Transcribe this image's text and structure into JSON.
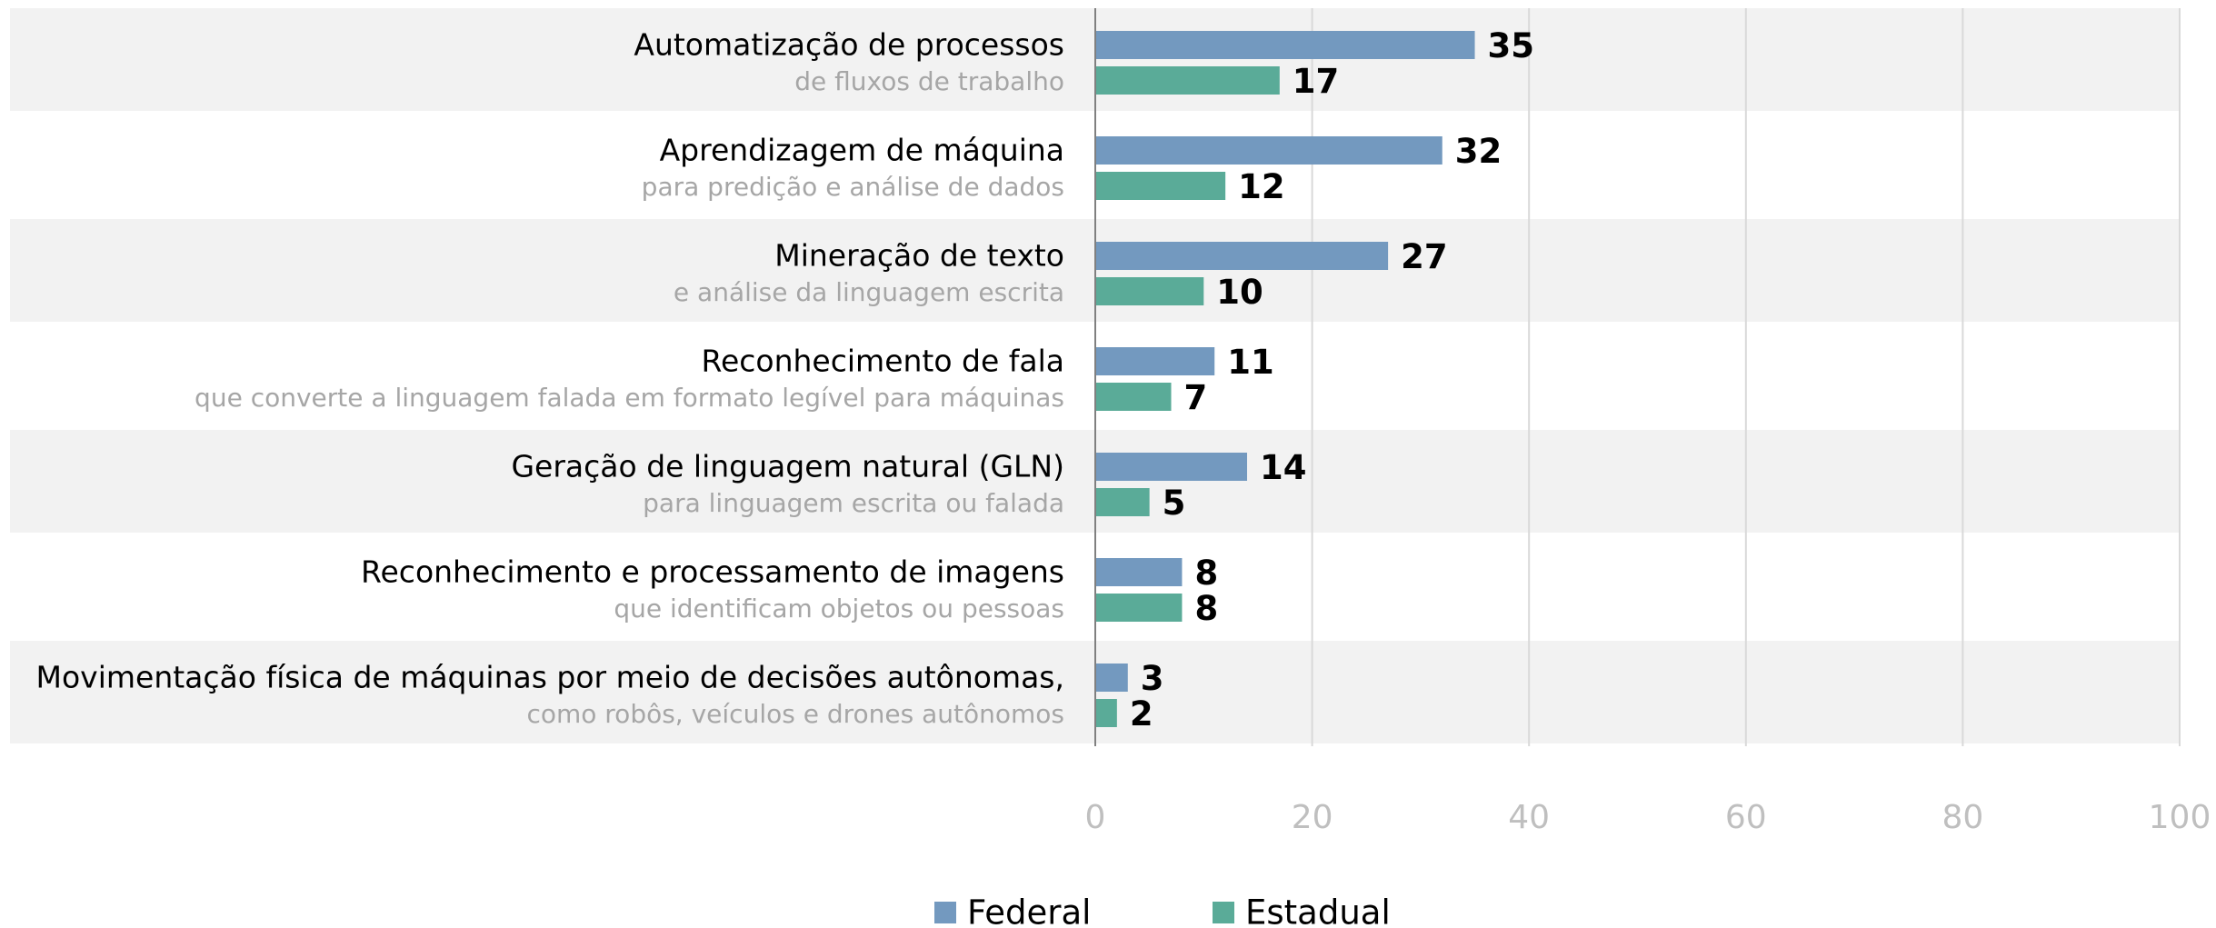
{
  "chart_data": {
    "type": "bar",
    "orientation": "horizontal",
    "categories": [
      "Automatização de processos",
      "Aprendizagem de máquina",
      "Mineração de texto",
      "Reconhecimento de fala",
      "Geração de linguagem natural (GLN)",
      "Reconhecimento e processamento de imagens",
      "Movimentação física de máquinas por meio de decisões autônomas,"
    ],
    "category_notes": [
      "de fluxos de trabalho",
      "para predição e análise de dados",
      "e análise da linguagem escrita",
      "que converte a linguagem falada em formato legível para máquinas",
      "para linguagem escrita ou falada",
      "que identificam objetos ou pessoas",
      "como robôs, veículos e drones autônomos"
    ],
    "series": [
      {
        "name": "Federal",
        "color": "#7399bf",
        "values": [
          35,
          32,
          27,
          11,
          14,
          8,
          3
        ]
      },
      {
        "name": "Estadual",
        "color": "#5aab98",
        "values": [
          17,
          12,
          10,
          7,
          5,
          8,
          2
        ]
      }
    ],
    "xlim": [
      0,
      100
    ],
    "xticks": [
      0,
      20,
      40,
      60,
      80,
      100
    ],
    "grid": true,
    "legend": "bottom"
  }
}
